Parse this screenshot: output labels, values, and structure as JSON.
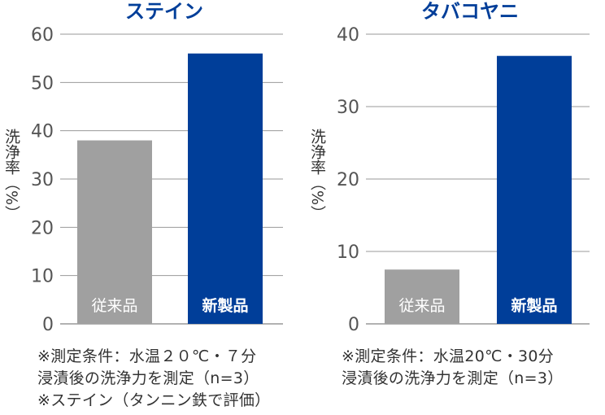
{
  "chart_data": [
    {
      "type": "bar",
      "title": "ステイン",
      "ylabel": "洗浄率（%）",
      "ylim": [
        0,
        60
      ],
      "yticks": [
        "0",
        "10",
        "20",
        "30",
        "40",
        "50",
        "60"
      ],
      "categories": [
        "従来品",
        "新製品"
      ],
      "values": [
        38,
        56
      ],
      "bar_colors": [
        "#a0a0a0",
        "#003e99"
      ],
      "title_color": "#003e99",
      "grid": true,
      "notes": [
        "※測定条件：水温２０℃・７分",
        "浸漬後の洗浄力を測定（n=3）",
        "※ステイン（タンニン鉄で評価）"
      ]
    },
    {
      "type": "bar",
      "title": "タバコヤニ",
      "ylabel": "洗浄率（%）",
      "ylim": [
        0,
        40
      ],
      "yticks": [
        "0",
        "10",
        "20",
        "30",
        "40"
      ],
      "categories": [
        "従来品",
        "新製品"
      ],
      "values": [
        7.5,
        37
      ],
      "bar_colors": [
        "#a0a0a0",
        "#003e99"
      ],
      "title_color": "#003e99",
      "grid": true,
      "notes": [
        "※測定条件：水温20℃・30分",
        "浸漬後の洗浄力を測定（n=3）"
      ]
    }
  ]
}
